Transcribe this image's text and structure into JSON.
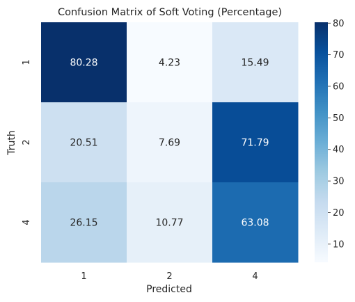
{
  "chart_data": {
    "type": "heatmap",
    "title": "Confusion Matrix of Soft Voting (Percentage)",
    "xlabel": "Predicted",
    "ylabel": "Truth",
    "x_categories": [
      "1",
      "2",
      "4"
    ],
    "y_categories": [
      "1",
      "2",
      "4"
    ],
    "values": [
      [
        80.28,
        4.23,
        15.49
      ],
      [
        20.51,
        7.69,
        71.79
      ],
      [
        26.15,
        10.77,
        63.08
      ]
    ],
    "value_labels": [
      [
        "80.28",
        "4.23",
        "15.49"
      ],
      [
        "20.51",
        "7.69",
        "71.79"
      ],
      [
        "26.15",
        "10.77",
        "63.08"
      ]
    ],
    "colorbar": {
      "min": 4.23,
      "max": 80.28,
      "ticks": [
        10,
        20,
        30,
        40,
        50,
        60,
        70,
        80
      ],
      "tick_labels": [
        "10",
        "20",
        "30",
        "40",
        "50",
        "60",
        "70",
        "80"
      ],
      "colormap": "Blues"
    },
    "grid": false,
    "legend": "colorbar-right"
  }
}
